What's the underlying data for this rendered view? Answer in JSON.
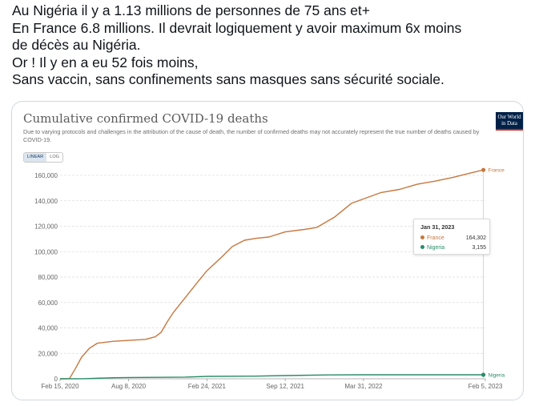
{
  "tweet": {
    "lines": [
      "Au Nigéria il y a 1.13 millions de personnes de 75 ans et+",
      "En France 6.8 millions. Il devrait logiquement y avoir maximum 6x moins",
      "de décès au Nigéria.",
      "Or ! Il y en a eu 52 fois moins,",
      "Sans vaccin, sans confinements sans masques sans sécurité sociale."
    ]
  },
  "owid": {
    "logo_line1": "Our World",
    "logo_line2": "in Data"
  },
  "scale": {
    "linear": "LINEAR",
    "log": "LOG"
  },
  "tooltip": {
    "date": "Jan 31, 2023",
    "rows": [
      {
        "name": "France",
        "value": "164,302"
      },
      {
        "name": "Nigeria",
        "value": "3,155"
      }
    ]
  },
  "colors": {
    "france": "#c7773f",
    "nigeria": "#2a8c68"
  },
  "chart_data": {
    "type": "line",
    "title": "Cumulative confirmed COVID-19 deaths",
    "subtitle": "Due to varying protocols and challenges in the attribution of the cause of death, the number of confirmed deaths may not accurately represent the true number of deaths caused by COVID-19.",
    "xlabel": "",
    "ylabel": "",
    "x_range": [
      "2020-02-15",
      "2023-02-05"
    ],
    "ylim": [
      0,
      160000
    ],
    "y_ticks": [
      0,
      20000,
      40000,
      60000,
      80000,
      100000,
      120000,
      140000,
      160000
    ],
    "y_tick_labels": [
      "0",
      "20,000",
      "40,000",
      "60,000",
      "80,000",
      "100,000",
      "120,000",
      "140,000",
      "160,000"
    ],
    "x_ticks": [
      "2020-02-15",
      "2020-08-08",
      "2021-02-24",
      "2021-09-12",
      "2022-03-31",
      "2023-02-05"
    ],
    "x_tick_labels": [
      "Feb 15, 2020",
      "Aug 8, 2020",
      "Feb 24, 2021",
      "Sep 12, 2021",
      "Mar 31, 2022",
      "Feb 5, 2023"
    ],
    "grid": true,
    "series": [
      {
        "name": "France",
        "end_label": "France",
        "points": [
          [
            "2020-02-15",
            0
          ],
          [
            "2020-03-10",
            100
          ],
          [
            "2020-03-25",
            8000
          ],
          [
            "2020-04-10",
            17000
          ],
          [
            "2020-04-30",
            24000
          ],
          [
            "2020-05-20",
            28000
          ],
          [
            "2020-06-30",
            29500
          ],
          [
            "2020-08-08",
            30200
          ],
          [
            "2020-09-20",
            31000
          ],
          [
            "2020-10-15",
            33000
          ],
          [
            "2020-10-30",
            36500
          ],
          [
            "2020-11-15",
            45000
          ],
          [
            "2020-11-30",
            52000
          ],
          [
            "2020-12-31",
            64000
          ],
          [
            "2021-01-31",
            76000
          ],
          [
            "2021-02-24",
            85000
          ],
          [
            "2021-03-31",
            95000
          ],
          [
            "2021-04-30",
            104000
          ],
          [
            "2021-05-31",
            109000
          ],
          [
            "2021-06-30",
            110500
          ],
          [
            "2021-08-01",
            111500
          ],
          [
            "2021-09-12",
            115500
          ],
          [
            "2021-10-31",
            117500
          ],
          [
            "2021-12-01",
            119000
          ],
          [
            "2022-01-15",
            127000
          ],
          [
            "2022-02-28",
            138000
          ],
          [
            "2022-03-31",
            141500
          ],
          [
            "2022-05-15",
            146500
          ],
          [
            "2022-07-01",
            149000
          ],
          [
            "2022-08-15",
            153000
          ],
          [
            "2022-10-01",
            155500
          ],
          [
            "2022-11-15",
            158500
          ],
          [
            "2022-12-31",
            162000
          ],
          [
            "2023-01-31",
            164302
          ]
        ]
      },
      {
        "name": "Nigeria",
        "end_label": "Nigeria",
        "points": [
          [
            "2020-02-15",
            0
          ],
          [
            "2020-04-15",
            50
          ],
          [
            "2020-06-30",
            800
          ],
          [
            "2020-08-08",
            1000
          ],
          [
            "2020-12-31",
            1300
          ],
          [
            "2021-02-24",
            1900
          ],
          [
            "2021-06-30",
            2100
          ],
          [
            "2021-09-12",
            2500
          ],
          [
            "2021-12-31",
            3000
          ],
          [
            "2022-03-31",
            3140
          ],
          [
            "2022-12-31",
            3155
          ],
          [
            "2023-01-31",
            3155
          ]
        ]
      }
    ]
  }
}
